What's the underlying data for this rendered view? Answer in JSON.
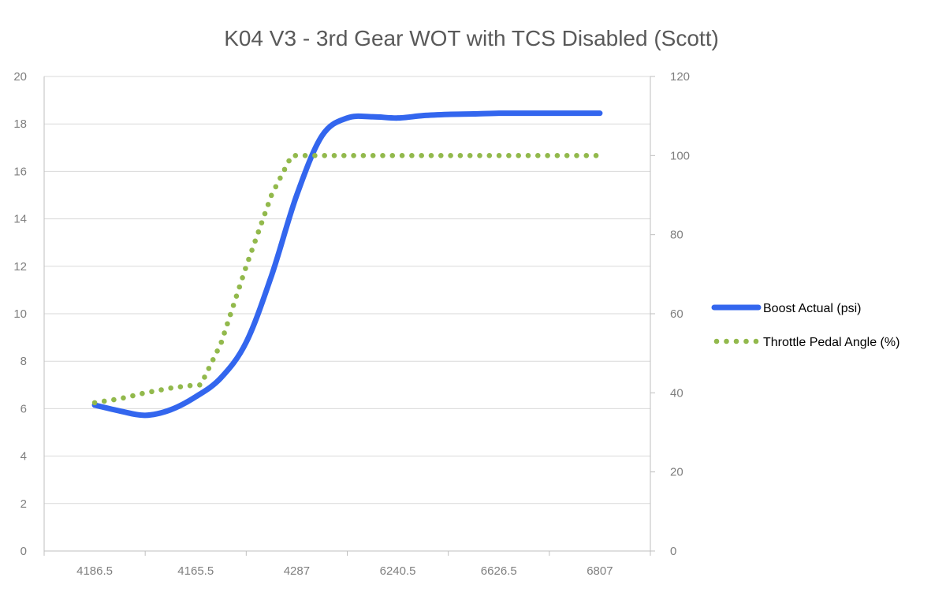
{
  "chart_data": {
    "type": "line",
    "title": "K04 V3 - 3rd Gear WOT with TCS Disabled (Scott)",
    "xlabel": "",
    "ylabel": "",
    "y2label": "",
    "categories": [
      "4186.5",
      "4165.5",
      "4287",
      "6240.5",
      "6626.5",
      "6807"
    ],
    "ylim": [
      0,
      20
    ],
    "yticks": [
      0,
      2,
      4,
      6,
      8,
      10,
      12,
      14,
      16,
      18,
      20
    ],
    "y2lim": [
      0,
      120
    ],
    "y2ticks": [
      0,
      20,
      40,
      60,
      80,
      100,
      120
    ],
    "grid": true,
    "legend_position": "right",
    "series": [
      {
        "name": "Boost Actual (psi)",
        "axis": "left",
        "style": "solid",
        "color": "#3366ee",
        "x": [
          0,
          0.25,
          0.5,
          0.75,
          1,
          1.25,
          1.5,
          1.75,
          2,
          2.25,
          2.5,
          2.75,
          3,
          3.25,
          3.5,
          3.75,
          4,
          4.25,
          4.5,
          4.75,
          5
        ],
        "values": [
          6.15,
          5.9,
          5.72,
          5.95,
          6.5,
          7.3,
          8.8,
          11.6,
          15.0,
          17.5,
          18.25,
          18.3,
          18.25,
          18.35,
          18.4,
          18.42,
          18.45,
          18.45,
          18.45,
          18.45,
          18.45
        ]
      },
      {
        "name": "Throttle Pedal Angle (%)",
        "axis": "right",
        "style": "dotted",
        "color": "#92b94c",
        "x": [
          0,
          0.25,
          0.5,
          0.75,
          1,
          1.05,
          1.25,
          1.5,
          1.75,
          1.95,
          2,
          2.5,
          3,
          3.5,
          4,
          4.5,
          5
        ],
        "values": [
          37.5,
          38.5,
          40,
          41.2,
          42,
          42,
          52.5,
          72,
          90,
          100,
          100,
          100,
          100,
          100,
          100,
          100,
          100
        ]
      }
    ]
  }
}
